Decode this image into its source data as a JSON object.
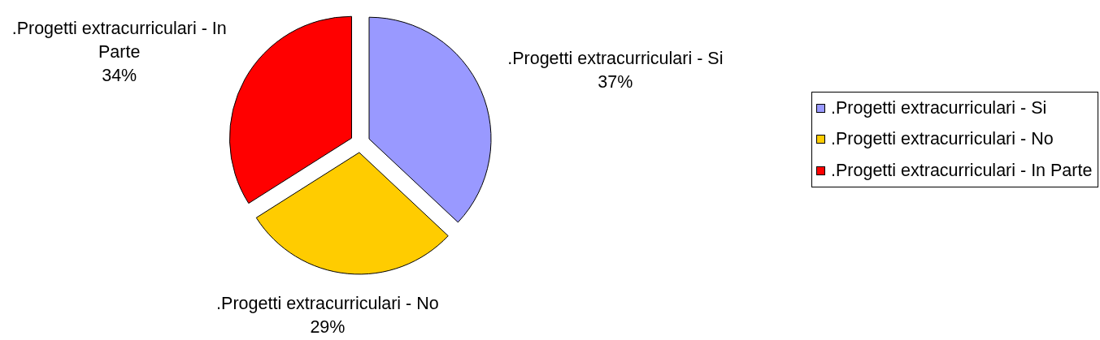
{
  "chart_data": {
    "type": "pie",
    "categories": [
      ".Progetti extracurriculari - Si",
      ".Progetti extracurriculari - No",
      ".Progetti extracurriculari - In Parte"
    ],
    "values": [
      37,
      29,
      34
    ],
    "colors": [
      "#9999ff",
      "#ffcc00",
      "#ff0000"
    ],
    "value_labels": [
      "37%",
      "29%",
      "34%"
    ],
    "legend": "right"
  }
}
